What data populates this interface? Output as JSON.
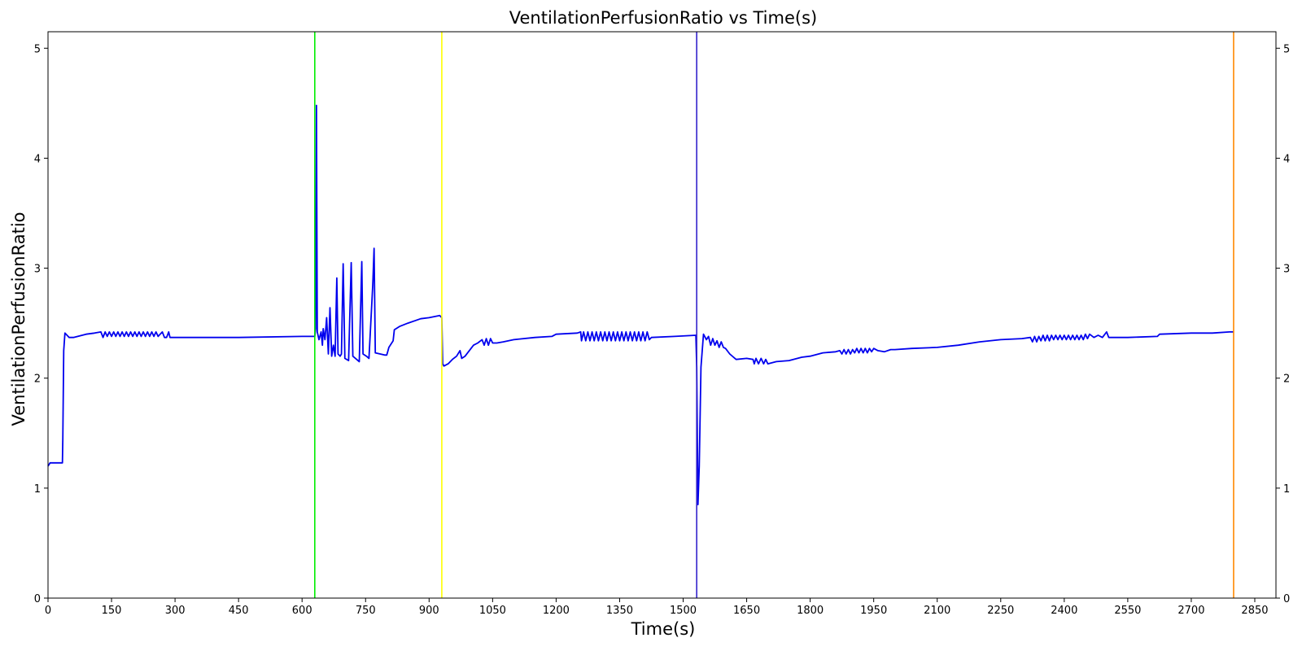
{
  "chart_data": {
    "type": "line",
    "title": "VentilationPerfusionRatio vs Time(s)",
    "xlabel": "Time(s)",
    "ylabel": "VentilationPerfusionRatio",
    "xlim": [
      0,
      2900
    ],
    "ylim": [
      0,
      5.15
    ],
    "x_ticks": [
      0,
      150,
      300,
      450,
      600,
      750,
      900,
      1050,
      1200,
      1350,
      1500,
      1650,
      1800,
      1950,
      2100,
      2250,
      2400,
      2550,
      2700,
      2850
    ],
    "y_ticks": [
      0,
      1,
      2,
      3,
      4,
      5
    ],
    "y_ticks_right": [
      0,
      1,
      2,
      3,
      4,
      5
    ],
    "grid": false,
    "series": [
      {
        "color": "#0000ee",
        "points": [
          [
            0,
            1.2
          ],
          [
            5,
            1.23
          ],
          [
            20,
            1.23
          ],
          [
            34,
            1.23
          ],
          [
            35,
            1.45
          ],
          [
            37,
            2.25
          ],
          [
            40,
            2.41
          ],
          [
            50,
            2.37
          ],
          [
            60,
            2.37
          ],
          [
            90,
            2.4
          ],
          [
            110,
            2.41
          ],
          [
            125,
            2.42
          ],
          [
            130,
            2.37
          ],
          [
            135,
            2.42
          ],
          [
            140,
            2.38
          ],
          [
            145,
            2.42
          ],
          [
            150,
            2.38
          ],
          [
            155,
            2.42
          ],
          [
            160,
            2.38
          ],
          [
            165,
            2.42
          ],
          [
            170,
            2.38
          ],
          [
            175,
            2.42
          ],
          [
            180,
            2.38
          ],
          [
            185,
            2.42
          ],
          [
            190,
            2.38
          ],
          [
            195,
            2.42
          ],
          [
            200,
            2.38
          ],
          [
            205,
            2.42
          ],
          [
            210,
            2.38
          ],
          [
            215,
            2.42
          ],
          [
            220,
            2.38
          ],
          [
            225,
            2.42
          ],
          [
            230,
            2.38
          ],
          [
            235,
            2.42
          ],
          [
            240,
            2.38
          ],
          [
            245,
            2.42
          ],
          [
            250,
            2.38
          ],
          [
            255,
            2.42
          ],
          [
            260,
            2.38
          ],
          [
            270,
            2.42
          ],
          [
            275,
            2.37
          ],
          [
            280,
            2.37
          ],
          [
            285,
            2.42
          ],
          [
            288,
            2.37
          ],
          [
            300,
            2.37
          ],
          [
            450,
            2.37
          ],
          [
            600,
            2.38
          ],
          [
            630,
            2.38
          ],
          [
            632,
            2.45
          ],
          [
            634,
            4.48
          ],
          [
            636,
            2.42
          ],
          [
            640,
            2.35
          ],
          [
            645,
            2.42
          ],
          [
            648,
            2.3
          ],
          [
            650,
            2.45
          ],
          [
            654,
            2.35
          ],
          [
            658,
            2.55
          ],
          [
            662,
            2.22
          ],
          [
            666,
            2.64
          ],
          [
            670,
            2.2
          ],
          [
            674,
            2.3
          ],
          [
            678,
            2.2
          ],
          [
            682,
            2.91
          ],
          [
            685,
            2.22
          ],
          [
            690,
            2.2
          ],
          [
            693,
            2.22
          ],
          [
            697,
            3.04
          ],
          [
            701,
            2.18
          ],
          [
            710,
            2.16
          ],
          [
            716,
            3.05
          ],
          [
            720,
            2.2
          ],
          [
            735,
            2.15
          ],
          [
            741,
            3.06
          ],
          [
            744,
            2.22
          ],
          [
            752,
            2.2
          ],
          [
            758,
            2.18
          ],
          [
            767,
            2.85
          ],
          [
            770,
            3.18
          ],
          [
            773,
            2.23
          ],
          [
            795,
            2.21
          ],
          [
            800,
            2.21
          ],
          [
            805,
            2.28
          ],
          [
            815,
            2.34
          ],
          [
            818,
            2.44
          ],
          [
            830,
            2.47
          ],
          [
            850,
            2.5
          ],
          [
            880,
            2.54
          ],
          [
            900,
            2.55
          ],
          [
            925,
            2.57
          ],
          [
            930,
            2.55
          ],
          [
            932,
            2.13
          ],
          [
            935,
            2.11
          ],
          [
            945,
            2.13
          ],
          [
            955,
            2.17
          ],
          [
            965,
            2.2
          ],
          [
            973,
            2.25
          ],
          [
            977,
            2.18
          ],
          [
            985,
            2.2
          ],
          [
            995,
            2.25
          ],
          [
            1005,
            2.3
          ],
          [
            1015,
            2.32
          ],
          [
            1025,
            2.35
          ],
          [
            1030,
            2.3
          ],
          [
            1035,
            2.36
          ],
          [
            1040,
            2.3
          ],
          [
            1045,
            2.36
          ],
          [
            1050,
            2.32
          ],
          [
            1060,
            2.32
          ],
          [
            1075,
            2.33
          ],
          [
            1100,
            2.35
          ],
          [
            1150,
            2.37
          ],
          [
            1190,
            2.38
          ],
          [
            1200,
            2.4
          ],
          [
            1250,
            2.41
          ],
          [
            1258,
            2.42
          ],
          [
            1260,
            2.34
          ],
          [
            1265,
            2.42
          ],
          [
            1270,
            2.34
          ],
          [
            1275,
            2.42
          ],
          [
            1280,
            2.34
          ],
          [
            1285,
            2.42
          ],
          [
            1290,
            2.34
          ],
          [
            1295,
            2.42
          ],
          [
            1300,
            2.34
          ],
          [
            1305,
            2.42
          ],
          [
            1310,
            2.34
          ],
          [
            1315,
            2.42
          ],
          [
            1320,
            2.34
          ],
          [
            1325,
            2.42
          ],
          [
            1330,
            2.34
          ],
          [
            1335,
            2.42
          ],
          [
            1340,
            2.34
          ],
          [
            1345,
            2.42
          ],
          [
            1350,
            2.34
          ],
          [
            1355,
            2.42
          ],
          [
            1360,
            2.34
          ],
          [
            1365,
            2.42
          ],
          [
            1370,
            2.34
          ],
          [
            1375,
            2.42
          ],
          [
            1380,
            2.34
          ],
          [
            1385,
            2.42
          ],
          [
            1390,
            2.34
          ],
          [
            1395,
            2.42
          ],
          [
            1400,
            2.34
          ],
          [
            1405,
            2.42
          ],
          [
            1410,
            2.34
          ],
          [
            1415,
            2.42
          ],
          [
            1420,
            2.35
          ],
          [
            1425,
            2.37
          ],
          [
            1480,
            2.38
          ],
          [
            1530,
            2.39
          ],
          [
            1532,
            2.1
          ],
          [
            1535,
            0.85
          ],
          [
            1538,
            1.2
          ],
          [
            1542,
            2.1
          ],
          [
            1548,
            2.4
          ],
          [
            1555,
            2.35
          ],
          [
            1560,
            2.38
          ],
          [
            1565,
            2.3
          ],
          [
            1570,
            2.36
          ],
          [
            1575,
            2.3
          ],
          [
            1580,
            2.34
          ],
          [
            1585,
            2.28
          ],
          [
            1590,
            2.33
          ],
          [
            1595,
            2.28
          ],
          [
            1600,
            2.27
          ],
          [
            1610,
            2.22
          ],
          [
            1625,
            2.17
          ],
          [
            1650,
            2.18
          ],
          [
            1665,
            2.17
          ],
          [
            1668,
            2.13
          ],
          [
            1672,
            2.18
          ],
          [
            1678,
            2.13
          ],
          [
            1684,
            2.18
          ],
          [
            1690,
            2.13
          ],
          [
            1695,
            2.17
          ],
          [
            1700,
            2.13
          ],
          [
            1720,
            2.15
          ],
          [
            1750,
            2.16
          ],
          [
            1780,
            2.19
          ],
          [
            1800,
            2.2
          ],
          [
            1830,
            2.23
          ],
          [
            1860,
            2.24
          ],
          [
            1870,
            2.25
          ],
          [
            1875,
            2.22
          ],
          [
            1880,
            2.26
          ],
          [
            1885,
            2.22
          ],
          [
            1890,
            2.26
          ],
          [
            1895,
            2.22
          ],
          [
            1900,
            2.26
          ],
          [
            1905,
            2.23
          ],
          [
            1910,
            2.27
          ],
          [
            1915,
            2.23
          ],
          [
            1920,
            2.27
          ],
          [
            1925,
            2.23
          ],
          [
            1930,
            2.27
          ],
          [
            1935,
            2.23
          ],
          [
            1940,
            2.27
          ],
          [
            1945,
            2.24
          ],
          [
            1950,
            2.27
          ],
          [
            1960,
            2.25
          ],
          [
            1975,
            2.24
          ],
          [
            1990,
            2.26
          ],
          [
            2000,
            2.26
          ],
          [
            2040,
            2.27
          ],
          [
            2100,
            2.28
          ],
          [
            2150,
            2.3
          ],
          [
            2200,
            2.33
          ],
          [
            2250,
            2.35
          ],
          [
            2300,
            2.36
          ],
          [
            2320,
            2.37
          ],
          [
            2325,
            2.33
          ],
          [
            2330,
            2.38
          ],
          [
            2335,
            2.33
          ],
          [
            2340,
            2.38
          ],
          [
            2345,
            2.34
          ],
          [
            2350,
            2.39
          ],
          [
            2355,
            2.34
          ],
          [
            2360,
            2.39
          ],
          [
            2365,
            2.34
          ],
          [
            2370,
            2.39
          ],
          [
            2375,
            2.35
          ],
          [
            2380,
            2.39
          ],
          [
            2385,
            2.35
          ],
          [
            2390,
            2.39
          ],
          [
            2395,
            2.35
          ],
          [
            2400,
            2.39
          ],
          [
            2405,
            2.35
          ],
          [
            2410,
            2.39
          ],
          [
            2415,
            2.35
          ],
          [
            2420,
            2.39
          ],
          [
            2425,
            2.35
          ],
          [
            2430,
            2.39
          ],
          [
            2435,
            2.35
          ],
          [
            2440,
            2.39
          ],
          [
            2445,
            2.35
          ],
          [
            2450,
            2.4
          ],
          [
            2455,
            2.36
          ],
          [
            2460,
            2.4
          ],
          [
            2470,
            2.37
          ],
          [
            2480,
            2.39
          ],
          [
            2490,
            2.37
          ],
          [
            2500,
            2.42
          ],
          [
            2505,
            2.37
          ],
          [
            2550,
            2.37
          ],
          [
            2620,
            2.38
          ],
          [
            2625,
            2.4
          ],
          [
            2700,
            2.41
          ],
          [
            2750,
            2.41
          ],
          [
            2790,
            2.42
          ],
          [
            2800,
            2.42
          ]
        ]
      }
    ],
    "vlines": [
      {
        "x": 630,
        "color": "#00ee00"
      },
      {
        "x": 930,
        "color": "#ffff00"
      },
      {
        "x": 1532,
        "color": "#3322cc"
      },
      {
        "x": 2800,
        "color": "#ff8800"
      }
    ]
  }
}
